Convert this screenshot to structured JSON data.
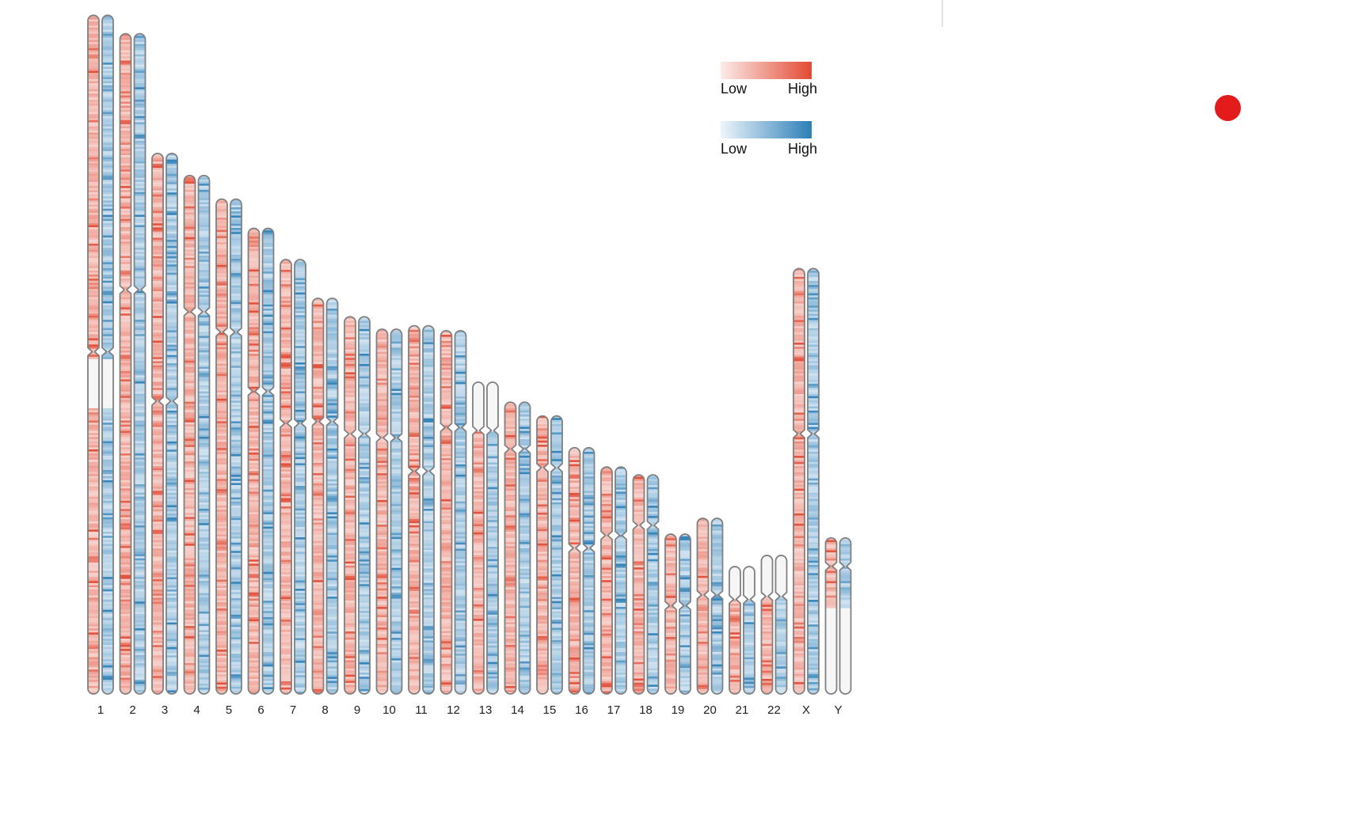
{
  "chart_data": {
    "type": "heatmap",
    "title": "",
    "xlabel": "",
    "ylabel": "",
    "chromosomes": [
      {
        "name": "1",
        "length": 248.96,
        "centromere": 123.4
      },
      {
        "name": "2",
        "length": 242.19,
        "centromere": 93.9
      },
      {
        "name": "3",
        "length": 198.3,
        "centromere": 90.9
      },
      {
        "name": "4",
        "length": 190.21,
        "centromere": 50.0
      },
      {
        "name": "5",
        "length": 181.54,
        "centromere": 48.8
      },
      {
        "name": "6",
        "length": 170.81,
        "centromere": 59.8
      },
      {
        "name": "7",
        "length": 159.35,
        "centromere": 60.1
      },
      {
        "name": "8",
        "length": 145.14,
        "centromere": 45.2
      },
      {
        "name": "9",
        "length": 138.39,
        "centromere": 43.0
      },
      {
        "name": "10",
        "length": 133.8,
        "centromere": 39.8
      },
      {
        "name": "11",
        "length": 135.09,
        "centromere": 53.4
      },
      {
        "name": "12",
        "length": 133.28,
        "centromere": 35.5
      },
      {
        "name": "13",
        "length": 114.36,
        "centromere": 17.7
      },
      {
        "name": "14",
        "length": 107.04,
        "centromere": 17.2
      },
      {
        "name": "15",
        "length": 101.99,
        "centromere": 19.0
      },
      {
        "name": "16",
        "length": 90.34,
        "centromere": 36.8
      },
      {
        "name": "17",
        "length": 83.26,
        "centromere": 25.1
      },
      {
        "name": "18",
        "length": 80.37,
        "centromere": 18.5
      },
      {
        "name": "19",
        "length": 58.62,
        "centromere": 26.2
      },
      {
        "name": "20",
        "length": 64.44,
        "centromere": 28.1
      },
      {
        "name": "21",
        "length": 46.71,
        "centromere": 12.0
      },
      {
        "name": "22",
        "length": 50.82,
        "centromere": 15.0
      },
      {
        "name": "X",
        "length": 156.04,
        "centromere": 60.6
      },
      {
        "name": "Y",
        "length": 57.23,
        "centromere": 10.4
      }
    ],
    "series": [
      {
        "color": "#e34a33"
      },
      {
        "color": "#2c7fb8"
      }
    ],
    "legend": [
      {
        "low_label": "Low",
        "high_label": "High",
        "color_low": "#fbecea",
        "color_high": "#e34a33"
      },
      {
        "low_label": "Low",
        "high_label": "High",
        "color_low": "#eef5fb",
        "color_high": "#2c7fb8"
      }
    ],
    "legend_position": "top-right"
  },
  "colors": {
    "outline": "#808080",
    "empty_fill": "#f6f6f6",
    "record_indicator": "#e31b1b"
  }
}
